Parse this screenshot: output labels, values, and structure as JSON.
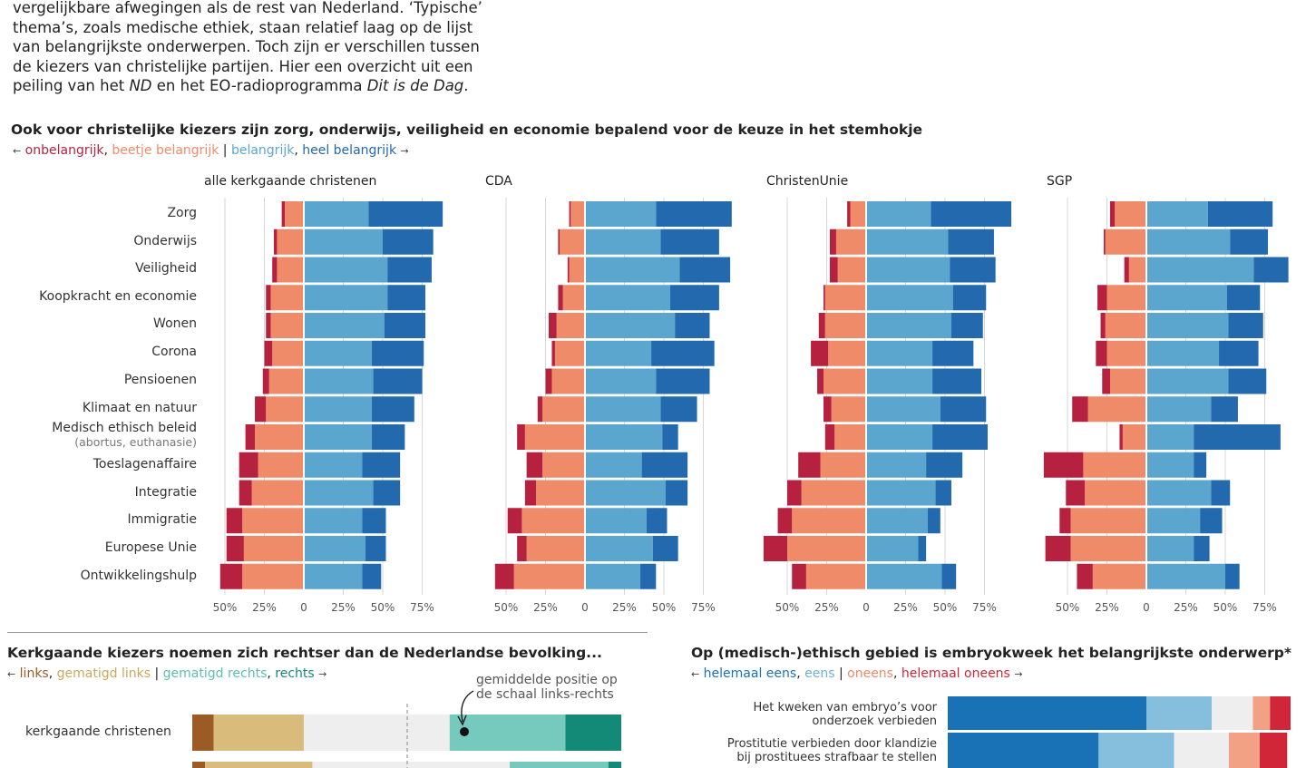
{
  "intro": {
    "line1": "vergelijkbare afwegingen als de rest van Nederland. ‘Typische’",
    "line2": "thema’s, zoals medische ethiek, staan relatief laag op de lijst",
    "line3": "van belangrijkste onderwerpen. Toch zijn er verschillen tussen",
    "line4": "de kiezers van christelijke partijen. Hier een overzicht uit een",
    "line5a": "peiling van het ",
    "line5b": "ND",
    "line5c": " en het EO-radioprogramma ",
    "line5d": "Dit is de Dag",
    "line5e": "."
  },
  "main_chart": {
    "title": "Ook voor christelijke kiezers zijn zorg, onderwijs, veiligheid en economie bepalend voor de keuze in het stemhokje",
    "legend": {
      "arrow_left": "←",
      "onbelangrijk": "onbelangrijk",
      "sep1": ", ",
      "beetje": "beetje belangrijk",
      "bar": " | ",
      "belangrijk": "belangrijk",
      "sep2": ", ",
      "heel": "heel belangrijk",
      "arrow_right": "→"
    },
    "categories": [
      "Zorg",
      "Onderwijs",
      "Veiligheid",
      "Koopkracht en economie",
      "Wonen",
      "Corona",
      "Pensioenen",
      "Klimaat en natuur",
      "Medisch ethisch beleid",
      "Toeslagenaffaire",
      "Integratie",
      "Immigratie",
      "Europese Unie",
      "Ontwikkelingshulp"
    ],
    "category_sub": {
      "medisch": "(abortus, euthanasie)"
    },
    "tick_labels": [
      "50%",
      "25%",
      "0",
      "25%",
      "50%",
      "75%"
    ]
  },
  "chart_data": [
    {
      "type": "bar",
      "title": "alle kerkgaande christenen",
      "categories": [
        "Zorg",
        "Onderwijs",
        "Veiligheid",
        "Koopkracht en economie",
        "Wonen",
        "Corona",
        "Pensioenen",
        "Klimaat en natuur",
        "Medisch ethisch beleid",
        "Toeslagenaffaire",
        "Integratie",
        "Immigratie",
        "Europese Unie",
        "Ontwikkelingshulp"
      ],
      "xlim": [
        -50,
        75
      ],
      "series": [
        {
          "name": "onbelangrijk",
          "color": "#b5213e",
          "values": [
            2,
            2,
            3,
            3,
            3,
            5,
            4,
            7,
            6,
            12,
            8,
            10,
            11,
            14
          ]
        },
        {
          "name": "beetje belangrijk",
          "color": "#f08b6a",
          "values": [
            12,
            17,
            17,
            21,
            21,
            20,
            22,
            24,
            31,
            29,
            33,
            39,
            38,
            39
          ]
        },
        {
          "name": "belangrijk",
          "color": "#5ba6cf",
          "values": [
            41,
            50,
            53,
            53,
            51,
            43,
            44,
            43,
            43,
            37,
            44,
            37,
            39,
            37
          ]
        },
        {
          "name": "heel belangrijk",
          "color": "#2269ad",
          "values": [
            47,
            32,
            28,
            24,
            26,
            33,
            31,
            27,
            21,
            24,
            17,
            15,
            13,
            12
          ]
        }
      ]
    },
    {
      "type": "bar",
      "title": "CDA",
      "categories": [
        "Zorg",
        "Onderwijs",
        "Veiligheid",
        "Koopkracht en economie",
        "Wonen",
        "Corona",
        "Pensioenen",
        "Klimaat en natuur",
        "Medisch ethisch beleid",
        "Toeslagenaffaire",
        "Integratie",
        "Immigratie",
        "Europese Unie",
        "Ontwikkelingshulp"
      ],
      "xlim": [
        -50,
        75
      ],
      "series": [
        {
          "name": "onbelangrijk",
          "color": "#b5213e",
          "values": [
            1,
            1,
            1,
            3,
            5,
            2,
            4,
            3,
            5,
            10,
            7,
            9,
            6,
            12
          ]
        },
        {
          "name": "beetje belangrijk",
          "color": "#f08b6a",
          "values": [
            9,
            16,
            10,
            14,
            18,
            19,
            21,
            27,
            38,
            27,
            31,
            40,
            37,
            45
          ]
        },
        {
          "name": "belangrijk",
          "color": "#5ba6cf",
          "values": [
            45,
            48,
            60,
            54,
            57,
            42,
            45,
            48,
            49,
            36,
            51,
            39,
            43,
            35
          ]
        },
        {
          "name": "heel belangrijk",
          "color": "#2269ad",
          "values": [
            48,
            37,
            32,
            31,
            22,
            40,
            34,
            23,
            10,
            29,
            14,
            13,
            16,
            10
          ]
        }
      ]
    },
    {
      "type": "bar",
      "title": "ChristenUnie",
      "categories": [
        "Zorg",
        "Onderwijs",
        "Veiligheid",
        "Koopkracht en economie",
        "Wonen",
        "Corona",
        "Pensioenen",
        "Klimaat en natuur",
        "Medisch ethisch beleid",
        "Toeslagenaffaire",
        "Integratie",
        "Immigratie",
        "Europese Unie",
        "Ontwikkelingshulp"
      ],
      "xlim": [
        -50,
        75
      ],
      "series": [
        {
          "name": "onbelangrijk",
          "color": "#b5213e",
          "values": [
            2,
            4,
            5,
            1,
            4,
            11,
            4,
            5,
            6,
            14,
            9,
            9,
            15,
            9
          ]
        },
        {
          "name": "beetje belangrijk",
          "color": "#f08b6a",
          "values": [
            10,
            19,
            18,
            26,
            26,
            24,
            27,
            22,
            20,
            29,
            41,
            47,
            50,
            38
          ]
        },
        {
          "name": "belangrijk",
          "color": "#5ba6cf",
          "values": [
            41,
            52,
            53,
            55,
            54,
            42,
            42,
            47,
            42,
            38,
            44,
            39,
            33,
            48
          ]
        },
        {
          "name": "heel belangrijk",
          "color": "#2269ad",
          "values": [
            51,
            29,
            29,
            21,
            20,
            26,
            31,
            29,
            35,
            23,
            10,
            8,
            5,
            9
          ]
        }
      ]
    },
    {
      "type": "bar",
      "title": "SGP",
      "categories": [
        "Zorg",
        "Onderwijs",
        "Veiligheid",
        "Koopkracht en economie",
        "Wonen",
        "Corona",
        "Pensioenen",
        "Klimaat en natuur",
        "Medisch ethisch beleid",
        "Toeslagenaffaire",
        "Integratie",
        "Immigratie",
        "Europese Unie",
        "Ontwikkelingshulp"
      ],
      "xlim": [
        -50,
        75
      ],
      "series": [
        {
          "name": "onbelangrijk",
          "color": "#b5213e",
          "values": [
            3,
            1,
            3,
            6,
            3,
            7,
            5,
            10,
            2,
            25,
            12,
            7,
            16,
            10
          ]
        },
        {
          "name": "beetje belangrijk",
          "color": "#f08b6a",
          "values": [
            20,
            26,
            11,
            25,
            26,
            25,
            23,
            37,
            15,
            40,
            39,
            48,
            48,
            34
          ]
        },
        {
          "name": "belangrijk",
          "color": "#5ba6cf",
          "values": [
            39,
            53,
            68,
            51,
            52,
            46,
            52,
            41,
            30,
            30,
            41,
            34,
            30,
            50
          ]
        },
        {
          "name": "heel belangrijk",
          "color": "#2269ad",
          "values": [
            41,
            24,
            22,
            21,
            22,
            25,
            24,
            17,
            55,
            8,
            12,
            14,
            10,
            9
          ]
        }
      ]
    },
    {
      "type": "bar",
      "title": "Kerkgaande kiezers noemen zich rechtser dan de Nederlandse bevolking...",
      "categories": [
        "kerkgaande christenen",
        ""
      ],
      "series": [
        {
          "name": "links",
          "color": "#9c5b25",
          "values": [
            5,
            3
          ]
        },
        {
          "name": "gematigd links",
          "color": "#d9bc7c",
          "values": [
            21,
            25
          ]
        },
        {
          "name": "midden",
          "color": "#eeeeee",
          "values": [
            34,
            46
          ]
        },
        {
          "name": "gematigd rechts",
          "color": "#76c9bd",
          "values": [
            27,
            23
          ]
        },
        {
          "name": "rechts",
          "color": "#138a78",
          "values": [
            13,
            3
          ]
        }
      ]
    },
    {
      "type": "bar",
      "title": "Op (medisch-)ethisch gebied is embryokweek het belangrijkste onderwerp*",
      "categories": [
        "Het kweken van embryo’s voor onderzoek verbieden",
        "Prostitutie verbieden door klandizie bij prostituees strafbaar te stellen"
      ],
      "series": [
        {
          "name": "helemaal eens",
          "color": "#1a72b6",
          "values": [
            58,
            44
          ]
        },
        {
          "name": "eens",
          "color": "#86bfdd",
          "values": [
            19,
            22
          ]
        },
        {
          "name": "neutraal",
          "color": "#eeeeee",
          "values": [
            12,
            16
          ]
        },
        {
          "name": "oneens",
          "color": "#f3a185",
          "values": [
            5,
            9
          ]
        },
        {
          "name": "helemaal oneens",
          "color": "#d12638",
          "values": [
            6,
            8
          ]
        }
      ]
    }
  ],
  "lr": {
    "title": "Kerkgaande kiezers noemen zich rechtser dan de Nederlandse bevolking...",
    "legend": {
      "arrow_left": "←",
      "links": "links",
      "sep1": ", ",
      "gematigd_links": "gematigd links",
      "bar": " | ",
      "gematigd_rechts": "gematigd rechts",
      "sep2": ", ",
      "rechts": "rechts",
      "arrow_right": "→"
    },
    "row1": "kerkgaande christenen",
    "annot1": "gemiddelde positie op",
    "annot2": "de schaal links-rechts"
  },
  "eth": {
    "title": "Op (medisch-)ethisch gebied is embryokweek het belangrijkste onderwerp*",
    "legend": {
      "arrow_left": "←",
      "helemaal_eens": "helemaal eens",
      "sep1": ", ",
      "eens": "eens",
      "bar": " | ",
      "oneens": "oneens",
      "sep2": ", ",
      "helemaal_oneens": "helemaal oneens",
      "arrow_right": "→"
    },
    "row1a": "Het kweken van embryo’s voor",
    "row1b": "onderzoek verbieden",
    "row2a": "Prostitutie verbieden door klandizie",
    "row2b": "bij prostituees strafbaar te stellen"
  }
}
